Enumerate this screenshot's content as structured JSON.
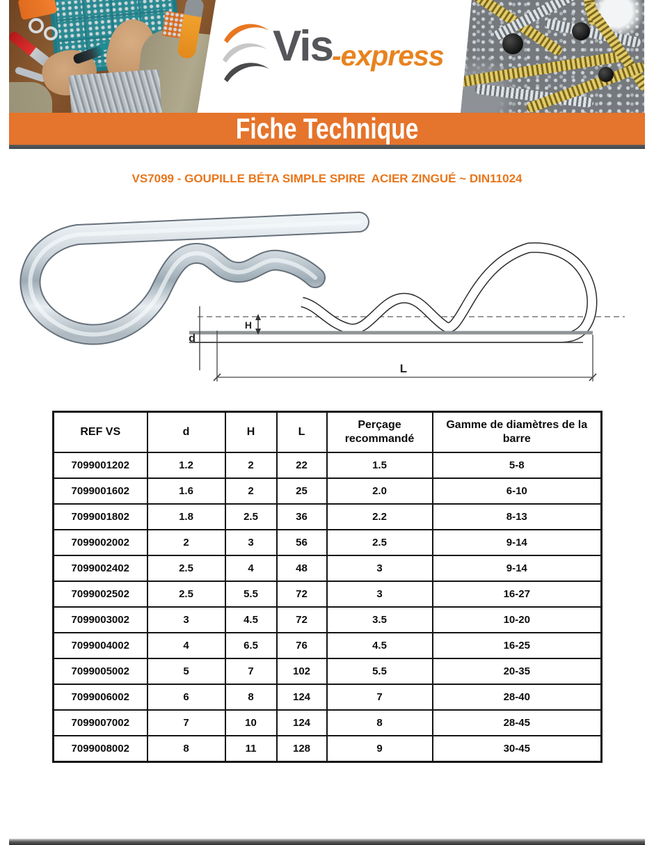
{
  "brand": {
    "logo_primary": "Vis",
    "logo_secondary": "-express"
  },
  "banner": {
    "title": "Fiche Technique"
  },
  "product_title": "VS7099 - GOUPILLE BÉTA SIMPLE SPIRE  ACIER ZINGUÉ ~ DIN11024",
  "diagram": {
    "label_d": "d",
    "label_h": "H",
    "label_l": "L"
  },
  "table": {
    "columns": [
      "REF VS",
      "d",
      "H",
      "L",
      "Perçage recommandé",
      "Gamme de diamètres de la barre"
    ],
    "rows": [
      [
        "7099001202",
        "1.2",
        "2",
        "22",
        "1.5",
        "5-8"
      ],
      [
        "7099001602",
        "1.6",
        "2",
        "25",
        "2.0",
        "6-10"
      ],
      [
        "7099001802",
        "1.8",
        "2.5",
        "36",
        "2.2",
        "8-13"
      ],
      [
        "7099002002",
        "2",
        "3",
        "56",
        "2.5",
        "9-14"
      ],
      [
        "7099002402",
        "2.5",
        "4",
        "48",
        "3",
        "9-14"
      ],
      [
        "7099002502",
        "2.5",
        "5.5",
        "72",
        "3",
        "16-27"
      ],
      [
        "7099003002",
        "3",
        "4.5",
        "72",
        "3.5",
        "10-20"
      ],
      [
        "7099004002",
        "4",
        "6.5",
        "76",
        "4.5",
        "16-25"
      ],
      [
        "7099005002",
        "5",
        "7",
        "102",
        "5.5",
        "20-35"
      ],
      [
        "7099006002",
        "6",
        "8",
        "124",
        "7",
        "28-40"
      ],
      [
        "7099007002",
        "7",
        "10",
        "124",
        "8",
        "28-45"
      ],
      [
        "7099008002",
        "8",
        "11",
        "128",
        "9",
        "30-45"
      ]
    ]
  },
  "colors": {
    "accent_orange": "#E5742C",
    "title_orange": "#E8761B",
    "logo_gray": "#55565A",
    "strip_gray": "#4B4E50"
  }
}
